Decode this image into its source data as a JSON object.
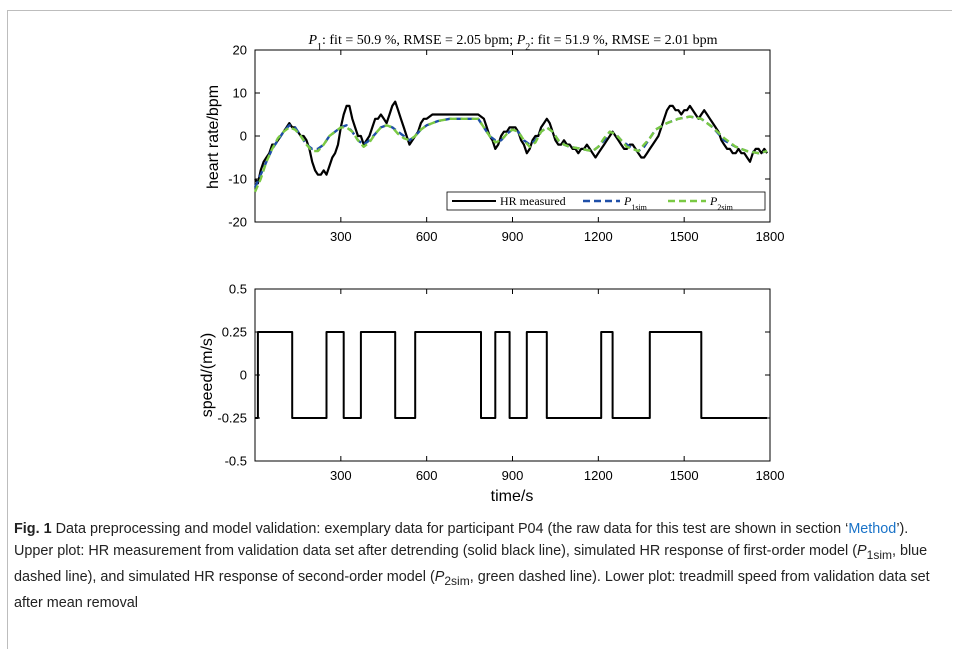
{
  "colors": {
    "measured": "#000000",
    "p1sim": "#1f4fa8",
    "p2sim": "#7ac943",
    "link": "#1a73c8"
  },
  "chart_data": [
    {
      "type": "line",
      "title": "P1: fit = 50.9 %, RMSE = 2.05 bpm; P2: fit = 51.9 %, RMSE = 2.01 bpm",
      "title_parts": {
        "p1": "P",
        "p1_sub": "1",
        "p1_rest": ": fit = 50.9 %, RMSE = 2.05 bpm; ",
        "p2": "P",
        "p2_sub": "2",
        "p2_rest": ": fit = 51.9 %, RMSE = 2.01 bpm"
      },
      "xlabel": "",
      "ylabel": "heart rate/bpm",
      "xlim": [
        0,
        1800
      ],
      "ylim": [
        -20,
        20
      ],
      "xticks": [
        300,
        600,
        900,
        1200,
        1500,
        1800
      ],
      "yticks": [
        -20,
        -10,
        0,
        10,
        20
      ],
      "grid": false,
      "legend_position": "bottom-right",
      "legend": [
        {
          "label": "HR measured",
          "style": "solid",
          "color": "#000000"
        },
        {
          "label": "P",
          "sub": "1sim",
          "style": "dashed",
          "color": "#1f4fa8"
        },
        {
          "label": "P",
          "sub": "2sim",
          "style": "dashed",
          "color": "#7ac943"
        }
      ],
      "series": [
        {
          "name": "HR measured",
          "x": [
            0,
            10,
            20,
            30,
            40,
            50,
            60,
            70,
            80,
            90,
            100,
            110,
            120,
            130,
            140,
            150,
            160,
            170,
            180,
            190,
            200,
            210,
            220,
            230,
            240,
            250,
            260,
            270,
            280,
            290,
            300,
            310,
            320,
            330,
            340,
            350,
            360,
            370,
            380,
            390,
            400,
            410,
            420,
            430,
            440,
            450,
            460,
            470,
            480,
            490,
            500,
            510,
            520,
            530,
            540,
            550,
            560,
            570,
            580,
            590,
            600,
            620,
            640,
            660,
            680,
            700,
            720,
            740,
            760,
            780,
            800,
            810,
            820,
            830,
            840,
            850,
            860,
            870,
            880,
            890,
            900,
            910,
            920,
            930,
            940,
            950,
            960,
            970,
            980,
            990,
            1000,
            1010,
            1020,
            1030,
            1040,
            1050,
            1060,
            1070,
            1080,
            1090,
            1100,
            1110,
            1120,
            1130,
            1140,
            1150,
            1160,
            1170,
            1180,
            1190,
            1200,
            1210,
            1220,
            1230,
            1240,
            1250,
            1260,
            1270,
            1280,
            1290,
            1300,
            1310,
            1320,
            1330,
            1340,
            1350,
            1360,
            1370,
            1380,
            1390,
            1400,
            1410,
            1420,
            1430,
            1440,
            1450,
            1460,
            1470,
            1480,
            1490,
            1500,
            1510,
            1520,
            1530,
            1540,
            1550,
            1560,
            1570,
            1580,
            1590,
            1600,
            1610,
            1620,
            1630,
            1640,
            1650,
            1660,
            1670,
            1680,
            1690,
            1700,
            1710,
            1720,
            1730,
            1740,
            1750,
            1760,
            1770,
            1780,
            1790
          ],
          "y": [
            -10,
            -11,
            -8,
            -6,
            -5,
            -4,
            -2,
            -2,
            -1,
            0,
            1,
            2,
            3,
            2,
            2,
            1,
            0,
            0,
            -1,
            -3,
            -6,
            -8,
            -9,
            -9,
            -8,
            -9,
            -7,
            -5,
            -4,
            -2,
            2,
            5,
            7,
            7,
            4,
            2,
            0,
            0,
            -2,
            -1,
            0,
            2,
            4,
            4,
            5,
            4,
            3,
            5,
            7,
            8,
            6,
            4,
            2,
            0,
            -2,
            -1,
            0,
            1,
            3,
            4,
            4,
            5,
            5,
            5,
            5,
            5,
            5,
            5,
            5,
            5,
            4,
            2,
            0,
            -1,
            -3,
            -2,
            0,
            1,
            1,
            2,
            2,
            2,
            1,
            -1,
            -2,
            -4,
            -3,
            -1,
            0,
            0,
            2,
            3,
            4,
            3,
            1,
            -1,
            -2,
            -2,
            -1,
            -2,
            -2,
            -3,
            -3,
            -4,
            -3,
            -3,
            -2,
            -3,
            -4,
            -5,
            -4,
            -3,
            -2,
            -1,
            0,
            1,
            0,
            -1,
            -2,
            -3,
            -3,
            -2,
            -2,
            -3,
            -4,
            -5,
            -5,
            -4,
            -3,
            -2,
            -1,
            0,
            2,
            4,
            6,
            7,
            7,
            6,
            6,
            5,
            6,
            6,
            7,
            6,
            5,
            4,
            5,
            6,
            5,
            4,
            3,
            2,
            1,
            -1,
            -2,
            -3,
            -3,
            -4,
            -4,
            -3,
            -4,
            -4,
            -5,
            -6,
            -4,
            -3,
            -3,
            -4,
            -3,
            -4
          ]
        },
        {
          "name": "P1sim",
          "x": [
            0,
            20,
            40,
            60,
            80,
            100,
            120,
            140,
            160,
            180,
            200,
            220,
            240,
            260,
            280,
            300,
            320,
            340,
            360,
            380,
            400,
            420,
            440,
            460,
            480,
            500,
            520,
            540,
            560,
            580,
            600,
            640,
            680,
            720,
            760,
            780,
            800,
            820,
            840,
            860,
            880,
            900,
            920,
            940,
            960,
            980,
            1000,
            1020,
            1040,
            1060,
            1080,
            1100,
            1140,
            1180,
            1200,
            1220,
            1240,
            1260,
            1280,
            1300,
            1320,
            1340,
            1360,
            1380,
            1400,
            1440,
            1480,
            1520,
            1560,
            1600,
            1640,
            1680,
            1720,
            1760,
            1790
          ],
          "y": [
            -12,
            -9,
            -6,
            -3,
            -1,
            1,
            2.5,
            2,
            0,
            -2,
            -3,
            -3,
            -2,
            0,
            1,
            2,
            2.5,
            1,
            -1,
            -2,
            -1,
            0.5,
            2,
            2.5,
            2,
            1,
            0,
            -1,
            0,
            1.5,
            2.5,
            3.5,
            4,
            4,
            4,
            4,
            2,
            0,
            -1,
            -1,
            0.5,
            1.5,
            1,
            -1,
            -2,
            -1,
            1,
            2,
            1,
            -1,
            -2,
            -2.5,
            -3,
            -3.5,
            -2.5,
            -1,
            1,
            0.5,
            -1,
            -2,
            -3,
            -3.5,
            -2.5,
            -0.5,
            1.5,
            3,
            4,
            4.5,
            4,
            2,
            -1,
            -2.5,
            -3.5,
            -4,
            -3.5
          ]
        },
        {
          "name": "P2sim",
          "x": [
            0,
            20,
            40,
            60,
            80,
            100,
            120,
            140,
            160,
            180,
            200,
            220,
            240,
            260,
            280,
            300,
            320,
            340,
            360,
            380,
            400,
            420,
            440,
            460,
            480,
            500,
            520,
            540,
            560,
            580,
            600,
            640,
            680,
            720,
            760,
            780,
            800,
            820,
            840,
            860,
            880,
            900,
            920,
            940,
            960,
            980,
            1000,
            1020,
            1040,
            1060,
            1080,
            1100,
            1140,
            1180,
            1200,
            1220,
            1240,
            1260,
            1280,
            1300,
            1320,
            1340,
            1360,
            1380,
            1400,
            1440,
            1480,
            1520,
            1560,
            1600,
            1640,
            1680,
            1720,
            1760,
            1790
          ],
          "y": [
            -13,
            -10,
            -6,
            -3,
            -0.5,
            1,
            2,
            1.5,
            0,
            -2,
            -3.5,
            -3.5,
            -2,
            0,
            1,
            2,
            2,
            1,
            -1,
            -2.5,
            -1.5,
            0.5,
            2,
            2.5,
            2,
            0.5,
            -0.5,
            -1,
            0,
            1.5,
            2.5,
            3.5,
            4,
            4,
            4,
            4,
            2,
            0,
            -1.5,
            -1,
            0.5,
            1.5,
            1,
            -1,
            -2.5,
            -1.5,
            1,
            2,
            1,
            -1,
            -2,
            -2.5,
            -3,
            -3.5,
            -2.5,
            -0.5,
            1,
            0.5,
            -1,
            -2.5,
            -3,
            -3.5,
            -2,
            -0.5,
            1.5,
            3,
            4,
            4.5,
            4,
            2,
            -0.5,
            -2.5,
            -3.5,
            -4,
            -3.5
          ]
        }
      ]
    },
    {
      "type": "line",
      "title": "",
      "xlabel": "time/s",
      "ylabel": "speed/(m/s)",
      "xlim": [
        0,
        1800
      ],
      "ylim": [
        -0.5,
        0.5
      ],
      "xticks": [
        300,
        600,
        900,
        1200,
        1500,
        1800
      ],
      "yticks": [
        -0.5,
        -0.25,
        0,
        0.25,
        0.5
      ],
      "ytick_labels": [
        "-0.5",
        "-0.25",
        "0",
        "0.25",
        "0.5"
      ],
      "grid": false,
      "series": [
        {
          "x": [
            0,
            10,
            10,
            130,
            130,
            250,
            250,
            310,
            310,
            370,
            370,
            490,
            490,
            560,
            560,
            790,
            790,
            840,
            840,
            890,
            890,
            950,
            950,
            1020,
            1020,
            1210,
            1210,
            1250,
            1250,
            1380,
            1380,
            1560,
            1560,
            1790
          ],
          "y": [
            -0.25,
            -0.25,
            0.25,
            0.25,
            -0.25,
            -0.25,
            0.25,
            0.25,
            -0.25,
            -0.25,
            0.25,
            0.25,
            -0.25,
            -0.25,
            0.25,
            0.25,
            -0.25,
            -0.25,
            0.25,
            0.25,
            -0.25,
            -0.25,
            0.25,
            0.25,
            -0.25,
            -0.25,
            0.25,
            0.25,
            -0.25,
            -0.25,
            0.25,
            0.25,
            -0.25,
            -0.25
          ]
        }
      ]
    }
  ],
  "caption": {
    "label": "Fig. 1",
    "part1": "  Data preprocessing and model validation: exemplary data for participant P04 (the raw data for this test are shown in section ‘",
    "link": "Method",
    "part2": "’). Upper plot: HR measurement from validation data set after detrending (solid black line), simulated HR response of first-order model (",
    "p1_var": "P",
    "p1_sub": "1sim",
    "part3": ", blue dashed line), and simulated HR response of second-order model (",
    "p2_var": "P",
    "p2_sub": "2sim",
    "part4": ", green dashed line). Lower plot: treadmill speed from validation data set after mean removal"
  }
}
